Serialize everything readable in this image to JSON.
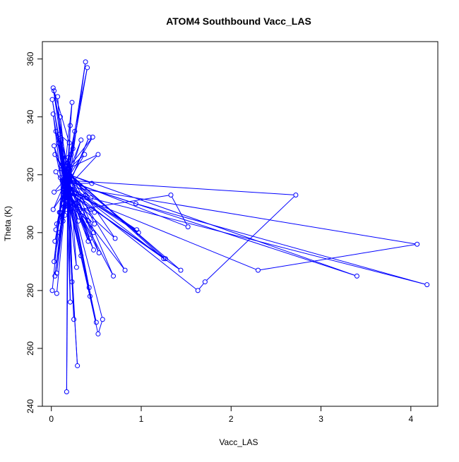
{
  "chart_data": {
    "type": "line",
    "title": "ATOM4 Southbound Vacc_LAS",
    "xlabel": "Vacc_LAS",
    "ylabel": "Theta (K)",
    "xlim": [
      -0.1,
      4.3
    ],
    "ylim": [
      240,
      366
    ],
    "x_ticks": [
      0,
      1,
      2,
      3,
      4
    ],
    "y_ticks": [
      240,
      260,
      280,
      300,
      320,
      340,
      360
    ],
    "grid": false,
    "series": [
      {
        "color": "#0000ff",
        "marker": "open-circle",
        "points": [
          [
            0.14,
            316
          ],
          [
            0.18,
            322
          ],
          [
            0.1,
            319
          ],
          [
            0.12,
            310
          ],
          [
            0.15,
            313
          ],
          [
            0.2,
            318
          ],
          [
            0.16,
            320
          ],
          [
            0.13,
            315
          ],
          [
            0.11,
            323
          ],
          [
            0.17,
            317
          ],
          [
            0.19,
            312
          ],
          [
            0.14,
            321
          ],
          [
            0.16,
            311
          ],
          [
            0.12,
            318
          ],
          [
            0.18,
            324
          ],
          [
            0.15,
            316
          ],
          [
            0.13,
            314
          ],
          [
            0.2,
            319
          ],
          [
            0.22,
            327
          ],
          [
            0.17,
            313
          ],
          [
            0.15,
            309
          ],
          [
            0.18,
            320
          ],
          [
            0.14,
            318
          ],
          [
            0.07,
            347
          ],
          [
            0.12,
            322
          ],
          [
            0.05,
            321
          ],
          [
            0.16,
            316
          ],
          [
            0.08,
            331
          ],
          [
            0.17,
            319
          ],
          [
            0.09,
            307
          ],
          [
            0.14,
            315
          ],
          [
            0.13,
            304
          ],
          [
            0.18,
            317
          ],
          [
            0.1,
            340
          ],
          [
            0.16,
            314
          ],
          [
            0.11,
            332
          ],
          [
            0.15,
            323
          ],
          [
            0.19,
            326
          ],
          [
            0.14,
            317
          ],
          [
            0.17,
            312
          ],
          [
            0.02,
            341
          ],
          [
            0.13,
            313
          ],
          [
            0.15,
            306
          ],
          [
            0.18,
            321
          ],
          [
            0.12,
            326
          ],
          [
            0.16,
            318
          ],
          [
            0.03,
            330
          ],
          [
            0.14,
            314
          ],
          [
            0.19,
            318
          ],
          [
            0.1,
            304
          ],
          [
            0.17,
            315
          ],
          [
            0.09,
            300
          ],
          [
            0.18,
            311
          ],
          [
            0.06,
            303
          ],
          [
            0.14,
            309
          ],
          [
            0.15,
            318
          ],
          [
            0.4,
            357
          ],
          [
            0.2,
            322
          ],
          [
            0.48,
            303
          ],
          [
            0.17,
            311
          ],
          [
            0.38,
            359
          ],
          [
            0.16,
            314
          ],
          [
            0.42,
            333
          ],
          [
            0.19,
            316
          ],
          [
            0.52,
            327
          ],
          [
            0.18,
            322
          ],
          [
            0.46,
            333
          ],
          [
            0.15,
            317
          ],
          [
            0.45,
            317
          ],
          [
            0.2,
            320
          ],
          [
            0.44,
            312
          ],
          [
            0.16,
            319
          ],
          [
            0.41,
            304
          ],
          [
            0.17,
            310
          ],
          [
            0.48,
            307
          ],
          [
            0.19,
            314
          ],
          [
            0.47,
            300
          ],
          [
            0.17,
            319
          ],
          [
            0.43,
            298
          ],
          [
            0.21,
            313
          ],
          [
            0.38,
            313
          ],
          [
            0.1,
            307
          ],
          [
            1.33,
            313
          ],
          [
            1.52,
            302
          ],
          [
            0.2,
            318
          ],
          [
            2.72,
            313
          ],
          [
            1.71,
            283
          ],
          [
            1.63,
            280
          ],
          [
            0.16,
            316
          ],
          [
            4.07,
            296
          ],
          [
            2.3,
            287
          ],
          [
            0.18,
            314
          ],
          [
            4.18,
            282
          ],
          [
            0.94,
            310
          ],
          [
            0.15,
            318
          ],
          [
            3.4,
            285
          ],
          [
            0.2,
            320
          ],
          [
            1.44,
            287
          ],
          [
            0.19,
            314
          ],
          [
            1.27,
            291
          ],
          [
            0.18,
            321
          ],
          [
            1.25,
            291
          ],
          [
            0.16,
            317
          ],
          [
            0.95,
            301
          ],
          [
            0.17,
            316
          ],
          [
            0.97,
            300
          ],
          [
            0.2,
            319
          ],
          [
            0.82,
            287
          ],
          [
            0.15,
            314
          ],
          [
            0.71,
            298
          ],
          [
            0.18,
            322
          ],
          [
            0.69,
            285
          ],
          [
            0.16,
            316
          ],
          [
            0.52,
            265
          ],
          [
            0.57,
            270
          ],
          [
            0.17,
            318
          ],
          [
            0.5,
            269
          ],
          [
            0.18,
            312
          ],
          [
            0.43,
            278
          ],
          [
            0.16,
            320
          ],
          [
            0.42,
            281
          ],
          [
            0.19,
            318
          ],
          [
            0.47,
            294
          ],
          [
            0.17,
            316
          ],
          [
            0.53,
            293
          ],
          [
            0.2,
            320
          ],
          [
            0.41,
            297
          ],
          [
            0.17,
            317
          ],
          [
            0.29,
            254
          ],
          [
            0.18,
            314
          ],
          [
            0.25,
            270
          ],
          [
            0.19,
            319
          ],
          [
            0.21,
            276
          ],
          [
            0.17,
            316
          ],
          [
            0.23,
            283
          ],
          [
            0.2,
            322
          ],
          [
            0.28,
            288
          ],
          [
            0.16,
            318
          ],
          [
            0.33,
            292
          ],
          [
            0.18,
            315
          ],
          [
            0.17,
            245
          ],
          [
            0.19,
            320
          ],
          [
            0.06,
            286
          ],
          [
            0.16,
            317
          ],
          [
            0.04,
            285
          ],
          [
            0.18,
            318
          ],
          [
            0.06,
            279
          ],
          [
            0.01,
            280
          ],
          [
            0.14,
            322
          ],
          [
            0.03,
            290
          ],
          [
            0.18,
            315
          ],
          [
            0.04,
            297
          ],
          [
            0.17,
            319
          ],
          [
            0.05,
            301
          ],
          [
            0.16,
            318
          ],
          [
            0.02,
            308
          ],
          [
            0.19,
            316
          ],
          [
            0.03,
            314
          ],
          [
            0.17,
            319
          ],
          [
            0.04,
            327
          ],
          [
            0.18,
            320
          ],
          [
            0.05,
            335
          ],
          [
            0.16,
            317
          ],
          [
            0.01,
            346
          ],
          [
            0.17,
            318
          ],
          [
            0.02,
            350
          ],
          [
            0.18,
            322
          ],
          [
            0.03,
            349
          ],
          [
            0.2,
            331
          ],
          [
            0.09,
            334
          ],
          [
            0.16,
            325
          ],
          [
            0.23,
            345
          ],
          [
            0.17,
            318
          ],
          [
            0.26,
            335
          ],
          [
            0.19,
            320
          ],
          [
            0.21,
            337
          ],
          [
            0.18,
            317
          ],
          [
            0.33,
            332
          ],
          [
            0.17,
            319
          ],
          [
            0.24,
            329
          ],
          [
            0.19,
            322
          ],
          [
            0.37,
            327
          ],
          [
            0.16,
            316
          ],
          [
            0.3,
            304
          ],
          [
            0.18,
            318
          ],
          [
            0.35,
            307
          ],
          [
            0.17,
            319
          ]
        ]
      }
    ]
  }
}
